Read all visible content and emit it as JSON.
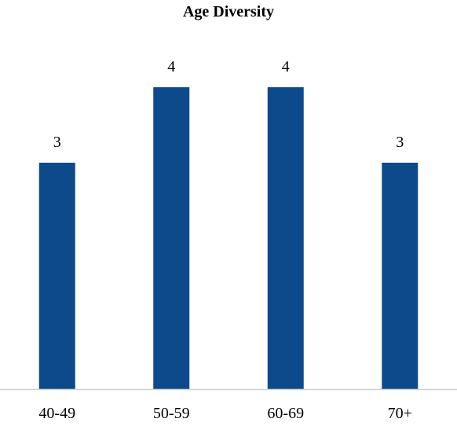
{
  "chart_data": {
    "type": "bar",
    "title": "Age Diversity",
    "xlabel": "",
    "ylabel": "",
    "categories": [
      "40-49",
      "50-59",
      "60-69",
      "70+"
    ],
    "values": [
      3,
      4,
      4,
      3
    ],
    "data_labels": [
      "3",
      "4",
      "4",
      "3"
    ],
    "ylim": [
      0,
      4.8
    ],
    "grid": false,
    "legend": "none",
    "bar_color": "#0d4a8c",
    "axis_color": "#d0d0d0"
  }
}
